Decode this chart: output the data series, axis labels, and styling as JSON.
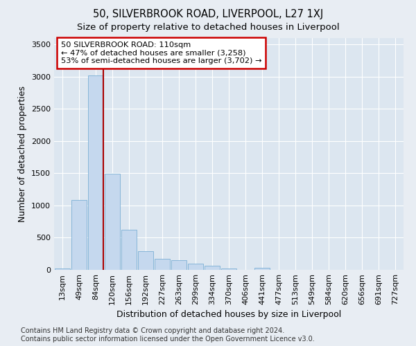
{
  "title": "50, SILVERBROOK ROAD, LIVERPOOL, L27 1XJ",
  "subtitle": "Size of property relative to detached houses in Liverpool",
  "xlabel": "Distribution of detached houses by size in Liverpool",
  "ylabel": "Number of detached properties",
  "categories": [
    "13sqm",
    "49sqm",
    "84sqm",
    "120sqm",
    "156sqm",
    "192sqm",
    "227sqm",
    "263sqm",
    "299sqm",
    "334sqm",
    "370sqm",
    "406sqm",
    "441sqm",
    "477sqm",
    "513sqm",
    "549sqm",
    "584sqm",
    "620sqm",
    "656sqm",
    "691sqm",
    "727sqm"
  ],
  "values": [
    18,
    1090,
    3020,
    1490,
    620,
    290,
    175,
    150,
    100,
    60,
    25,
    5,
    30,
    5,
    2,
    0,
    0,
    0,
    0,
    0,
    0
  ],
  "bar_color": "#c5d8ee",
  "bar_edge_color": "#7bafd4",
  "vline_color": "#aa0000",
  "annotation_text": "50 SILVERBROOK ROAD: 110sqm\n← 47% of detached houses are smaller (3,258)\n53% of semi-detached houses are larger (3,702) →",
  "annotation_box_color": "white",
  "annotation_box_edge": "#cc0000",
  "ylim": [
    0,
    3600
  ],
  "yticks": [
    0,
    500,
    1000,
    1500,
    2000,
    2500,
    3000,
    3500
  ],
  "footer": "Contains HM Land Registry data © Crown copyright and database right 2024.\nContains public sector information licensed under the Open Government Licence v3.0.",
  "bg_color": "#e8edf3",
  "plot_bg_color": "#dce6f0",
  "title_fontsize": 10.5,
  "subtitle_fontsize": 9.5,
  "axis_label_fontsize": 9,
  "tick_fontsize": 8,
  "footer_fontsize": 7
}
